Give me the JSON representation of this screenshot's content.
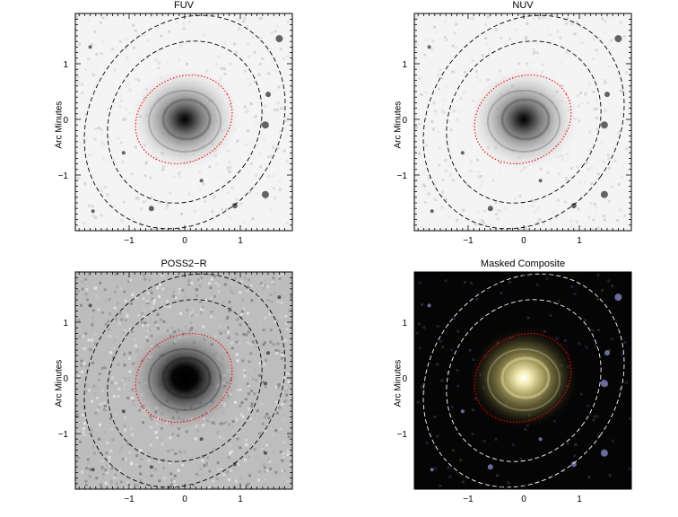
{
  "panels": [
    {
      "id": "fuv",
      "title": "FUV",
      "ylabel": "Arc Minutes",
      "background": "light",
      "ellipse_color": "#000000",
      "aperture_color": "#ff0000",
      "x_ticks": [
        "−1",
        "0",
        "1"
      ],
      "y_ticks": [
        "1",
        "0",
        "−1"
      ]
    },
    {
      "id": "nuv",
      "title": "NUV",
      "ylabel": "Arc Minutes",
      "background": "light",
      "ellipse_color": "#000000",
      "aperture_color": "#ff0000",
      "x_ticks": [
        "−1",
        "0",
        "1"
      ],
      "y_ticks": [
        "1",
        "0",
        "−1"
      ]
    },
    {
      "id": "poss2r",
      "title": "POSS2−R",
      "ylabel": "Arc Minutes",
      "background": "grainy",
      "ellipse_color": "#000000",
      "aperture_color": "#ff0000",
      "x_ticks": [
        "−1",
        "0",
        "1"
      ],
      "y_ticks": [
        "1",
        "0",
        "−1"
      ]
    },
    {
      "id": "composite",
      "title": "Masked Composite",
      "ylabel": "Arc Minutes",
      "background": "dark",
      "ellipse_color": "#ffffff",
      "aperture_color": "#ff0000",
      "x_ticks": [
        "−1",
        "0",
        "1"
      ],
      "y_ticks": [
        "1",
        "0",
        "−1"
      ]
    }
  ]
}
